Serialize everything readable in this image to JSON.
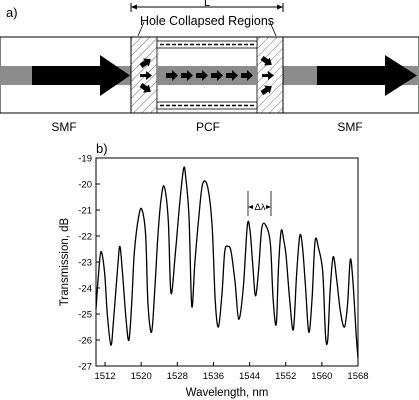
{
  "panel_a": {
    "label": "a)",
    "length_label": "L",
    "region_label": "Hole Collapsed Regions",
    "fiber_labels": [
      "SMF",
      "PCF",
      "SMF"
    ]
  },
  "panel_b": {
    "label": "b)",
    "annotation": "Δλ"
  },
  "chart_data": {
    "type": "line",
    "title": "",
    "xlabel": "Wavelength, nm",
    "ylabel": "Transmission, dB",
    "xlim": [
      1510,
      1568
    ],
    "ylim": [
      -27,
      -19
    ],
    "xticks": [
      1512,
      1520,
      1528,
      1536,
      1544,
      1552,
      1560,
      1568
    ],
    "yticks": [
      -19,
      -20,
      -21,
      -22,
      -23,
      -24,
      -25,
      -26,
      -27
    ],
    "grid": false,
    "series": [
      {
        "x": [
          1510.0,
          1510.5,
          1511.1,
          1511.9,
          1512.5,
          1513.3,
          1513.9,
          1514.8,
          1515.3,
          1515.9,
          1516.7,
          1517.3,
          1517.9,
          1518.5,
          1519.5,
          1520.2,
          1521.0,
          1521.5,
          1522.3,
          1523.0,
          1523.7,
          1524.4,
          1525.1,
          1526.0,
          1526.6,
          1527.6,
          1528.5,
          1529.4,
          1529.9,
          1530.6,
          1531.2,
          1531.9,
          1532.8,
          1533.6,
          1534.7,
          1535.7,
          1536.4,
          1537.1,
          1537.9,
          1538.5,
          1539.2,
          1539.9,
          1540.8,
          1541.6,
          1542.6,
          1543.5,
          1544.1,
          1544.7,
          1545.3,
          1546.0,
          1546.7,
          1547.6,
          1548.6,
          1549.2,
          1549.9,
          1550.4,
          1551.0,
          1551.6,
          1552.1,
          1552.9,
          1553.7,
          1554.4,
          1555.1,
          1555.7,
          1556.4,
          1557.1,
          1557.8,
          1558.5,
          1559.3,
          1560.2,
          1560.8,
          1561.3,
          1561.8,
          1562.5,
          1563.3,
          1564.1,
          1565.0,
          1565.7,
          1566.3,
          1566.9,
          1567.6,
          1568.0
        ],
        "y": [
          -24.8,
          -23.6,
          -22.6,
          -23.4,
          -25.0,
          -26.2,
          -25.2,
          -23.2,
          -22.4,
          -23.5,
          -25.3,
          -26.0,
          -24.6,
          -22.6,
          -21.2,
          -21.0,
          -22.0,
          -24.6,
          -25.7,
          -24.1,
          -22.0,
          -20.6,
          -20.1,
          -21.4,
          -24.2,
          -22.6,
          -20.8,
          -19.4,
          -19.8,
          -21.3,
          -24.7,
          -23.0,
          -21.2,
          -20.0,
          -20.1,
          -21.6,
          -24.5,
          -25.5,
          -24.2,
          -22.6,
          -22.4,
          -22.6,
          -23.8,
          -25.2,
          -24.0,
          -21.6,
          -21.8,
          -23.1,
          -24.3,
          -23.3,
          -21.7,
          -21.6,
          -22.3,
          -24.4,
          -25.4,
          -23.2,
          -21.8,
          -22.2,
          -22.8,
          -24.5,
          -25.6,
          -23.5,
          -22.0,
          -22.4,
          -24.0,
          -25.7,
          -24.5,
          -22.2,
          -22.5,
          -23.4,
          -25.8,
          -26.0,
          -24.2,
          -22.8,
          -23.7,
          -24.9,
          -25.5,
          -24.6,
          -22.9,
          -23.8,
          -25.8,
          -26.7
        ]
      }
    ]
  }
}
